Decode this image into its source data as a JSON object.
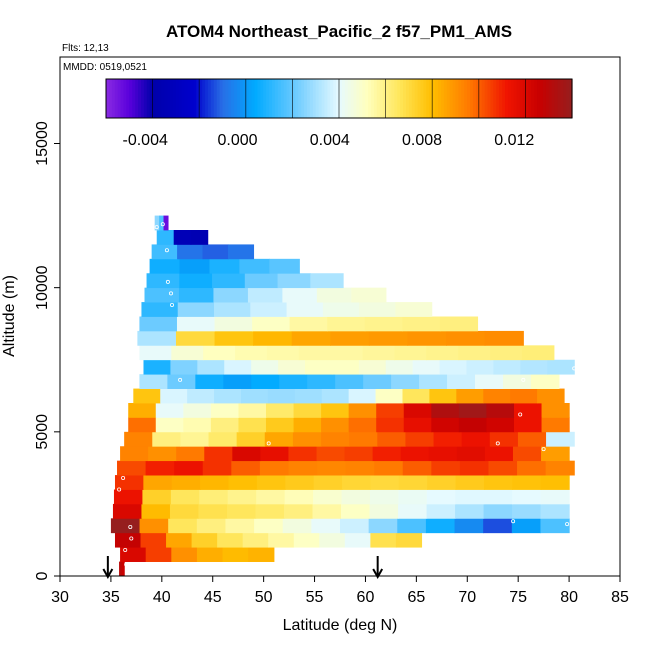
{
  "chart_data": {
    "type": "heatmap",
    "title": "ATOM4 Northeast_Pacific_2 f57_PM1_AMS",
    "flights_label": "Flts: 12,13",
    "date_label": "MMDD: 0519,0521",
    "xlabel": "Latitude (deg N)",
    "ylabel": "Altitude (m)",
    "xlim": [
      30,
      85
    ],
    "ylim": [
      0,
      18000
    ],
    "xticks": [
      "30",
      "35",
      "40",
      "45",
      "50",
      "55",
      "60",
      "65",
      "70",
      "75",
      "80",
      "85"
    ],
    "yticks": [
      "0",
      "5000",
      "10000",
      "15000"
    ],
    "colorbar": {
      "range": [
        -0.0057,
        0.0145
      ],
      "tick_values": [
        -0.004,
        0.0,
        0.004,
        0.008,
        0.012
      ],
      "tick_labels": [
        "-0.004",
        "0.000",
        "0.004",
        "0.008",
        "0.012"
      ]
    },
    "arrows_at_latitude": [
      34.7,
      61.2
    ],
    "profiles": [
      {
        "lat_start": 35.8,
        "lat_end": 36.3,
        "alt": [
          0,
          500
        ],
        "values": [
          0.0135,
          0.013
        ]
      },
      {
        "lat_start": 35.9,
        "lat_end": 51.0,
        "alt": [
          500,
          1000
        ],
        "values": [
          0.0125,
          0.011,
          0.0095,
          0.0088,
          0.0085,
          0.0087
        ]
      },
      {
        "lat_start": 35.4,
        "lat_end": 65.5,
        "alt": [
          1000,
          1500
        ],
        "values": [
          0.0132,
          0.011,
          0.009,
          0.0078,
          0.007,
          0.0065,
          0.006,
          0.0055,
          0.005,
          0.0045,
          0.0072,
          0.0075
        ]
      },
      {
        "lat_start": 35.0,
        "lat_end": 80.0,
        "alt": [
          1500,
          2000
        ],
        "values": [
          0.0145,
          0.0095,
          0.007,
          0.0065,
          0.006,
          0.0055,
          0.005,
          0.0045,
          0.004,
          0.003,
          0.002,
          0.001,
          0.0,
          -0.001,
          0.0005,
          0.002
        ]
      },
      {
        "lat_start": 35.2,
        "lat_end": 80.0,
        "alt": [
          2000,
          2500
        ],
        "values": [
          0.0125,
          0.0085,
          0.0075,
          0.0072,
          0.007,
          0.0068,
          0.0065,
          0.006,
          0.0055,
          0.005,
          0.0045,
          0.004,
          0.0035,
          0.003,
          0.0032,
          0.0035
        ]
      },
      {
        "lat_start": 35.3,
        "lat_end": 80.0,
        "alt": [
          2500,
          3000
        ],
        "values": [
          0.0118,
          0.0078,
          0.007,
          0.0066,
          0.0063,
          0.006,
          0.0057,
          0.0053,
          0.005,
          0.0048,
          0.0046,
          0.0044,
          0.0043,
          0.0043,
          0.0044,
          0.0045
        ]
      },
      {
        "lat_start": 35.4,
        "lat_end": 80.0,
        "alt": [
          3000,
          3500
        ],
        "values": [
          0.0112,
          0.009,
          0.0088,
          0.0086,
          0.0084,
          0.0082,
          0.008,
          0.0078,
          0.0076,
          0.0075,
          0.0076,
          0.0078,
          0.008,
          0.0082,
          0.0083,
          0.0084
        ]
      },
      {
        "lat_start": 35.6,
        "lat_end": 80.5,
        "alt": [
          3500,
          4000
        ],
        "values": [
          0.0108,
          0.0115,
          0.0118,
          0.0112,
          0.0105,
          0.01,
          0.0098,
          0.0097,
          0.0098,
          0.01,
          0.0105,
          0.011,
          0.0112,
          0.0108,
          0.0102,
          0.0098
        ]
      },
      {
        "lat_start": 35.9,
        "lat_end": 80.0,
        "alt": [
          4000,
          4500
        ],
        "values": [
          0.0098,
          0.0095,
          0.01,
          0.0112,
          0.0125,
          0.012,
          0.0112,
          0.0108,
          0.011,
          0.0115,
          0.0118,
          0.012,
          0.0122,
          0.0118,
          0.0108,
          0.0092
        ]
      },
      {
        "lat_start": 36.3,
        "lat_end": 80.5,
        "alt": [
          4500,
          5000
        ],
        "values": [
          0.0098,
          0.0065,
          0.0062,
          0.0068,
          0.0078,
          0.009,
          0.0095,
          0.0098,
          0.01,
          0.0105,
          0.011,
          0.0115,
          0.0118,
          0.0112,
          0.0105,
          0.004
        ]
      },
      {
        "lat_start": 36.7,
        "lat_end": 80.0,
        "alt": [
          5000,
          5500
        ],
        "values": [
          0.0102,
          0.0055,
          0.0058,
          0.0065,
          0.0072,
          0.008,
          0.0088,
          0.0095,
          0.0102,
          0.0112,
          0.012,
          0.0128,
          0.0132,
          0.0128,
          0.0118,
          0.01
        ]
      },
      {
        "lat_start": 36.7,
        "lat_end": 80.0,
        "alt": [
          5500,
          6000
        ],
        "values": [
          0.0088,
          0.0045,
          0.005,
          0.0055,
          0.006,
          0.0068,
          0.0075,
          0.0082,
          0.0095,
          0.011,
          0.0125,
          0.0138,
          0.0142,
          0.0136,
          0.0118,
          0.0095
        ]
      },
      {
        "lat_start": 37.2,
        "lat_end": 79.5,
        "alt": [
          6000,
          6500
        ],
        "values": [
          0.0082,
          0.0042,
          0.0038,
          0.0035,
          0.0033,
          0.0032,
          0.0033,
          0.0035,
          0.0042,
          0.0055,
          0.007,
          0.0082,
          0.0092,
          0.0098,
          0.01,
          0.0095
        ]
      },
      {
        "lat_start": 37.8,
        "lat_end": 79.0,
        "alt": [
          6500,
          7000
        ],
        "values": [
          0.0035,
          0.0025,
          0.001,
          0.0005,
          0.0008,
          0.0012,
          0.0015,
          0.002,
          0.0025,
          0.003,
          0.0035,
          0.004,
          0.0045,
          0.005,
          0.0055
        ]
      },
      {
        "lat_start": 38.2,
        "lat_end": 80.5,
        "alt": [
          7000,
          7500
        ],
        "values": [
          0.0012,
          0.0028,
          0.0035,
          0.0042,
          0.0048,
          0.0052,
          0.0055,
          0.0055,
          0.0052,
          0.0048,
          0.0045,
          0.0042,
          0.004,
          0.0038,
          0.0036,
          0.0035
        ]
      },
      {
        "lat_start": 37.8,
        "lat_end": 78.5,
        "alt": [
          7500,
          8000
        ],
        "values": [
          0.0045,
          0.0052,
          0.0056,
          0.0058,
          0.0059,
          0.006,
          0.006,
          0.0061,
          0.0062,
          0.0063,
          0.0064,
          0.0065,
          0.0066
        ]
      },
      {
        "lat_start": 37.6,
        "lat_end": 75.5,
        "alt": [
          8000,
          8500
        ],
        "values": [
          0.0035,
          0.0075,
          0.0082,
          0.0086,
          0.009,
          0.0092,
          0.0093,
          0.0094,
          0.0095,
          0.0096
        ]
      },
      {
        "lat_start": 37.8,
        "lat_end": 71.0,
        "alt": [
          8500,
          9000
        ],
        "values": [
          0.0025,
          0.0045,
          0.005,
          0.0055,
          0.006,
          0.0062,
          0.0063,
          0.0064,
          0.0065
        ]
      },
      {
        "lat_start": 38.0,
        "lat_end": 66.5,
        "alt": [
          9000,
          9500
        ],
        "values": [
          0.0015,
          0.003,
          0.0035,
          0.004,
          0.0045,
          0.0048,
          0.005,
          0.0052
        ]
      },
      {
        "lat_start": 38.3,
        "lat_end": 62.0,
        "alt": [
          9500,
          10000
        ],
        "values": [
          0.002,
          0.0015,
          0.003,
          0.0038,
          0.0045,
          0.005,
          0.0052
        ]
      },
      {
        "lat_start": 38.5,
        "lat_end": 57.8,
        "alt": [
          10000,
          10500
        ],
        "values": [
          0.0015,
          0.001,
          0.0015,
          0.0025,
          0.003,
          0.0035
        ]
      },
      {
        "lat_start": 38.8,
        "lat_end": 53.5,
        "alt": [
          10500,
          11000
        ],
        "values": [
          0.001,
          0.0005,
          0.0012,
          0.0018,
          0.0022
        ]
      },
      {
        "lat_start": 39.0,
        "lat_end": 49.0,
        "alt": [
          11000,
          11500
        ],
        "values": [
          0.0018,
          -0.0005,
          -0.0008,
          -0.0005
        ]
      },
      {
        "lat_start": 39.5,
        "lat_end": 44.5,
        "alt": [
          11500,
          12000
        ],
        "values": [
          0.0015,
          -0.003,
          -0.0032
        ]
      },
      {
        "lat_start": 39.3,
        "lat_end": 40.6,
        "alt": [
          12000,
          12500
        ],
        "values": [
          0.003,
          0.002,
          -0.005
        ]
      }
    ],
    "markers": [
      [
        36.5,
        400
      ],
      [
        36.4,
        900
      ],
      [
        37.0,
        1300
      ],
      [
        36.9,
        1700
      ],
      [
        74.5,
        1900
      ],
      [
        79.8,
        1800
      ],
      [
        35.8,
        3000
      ],
      [
        36.2,
        3400
      ],
      [
        50.5,
        4600
      ],
      [
        73.0,
        4600
      ],
      [
        77.5,
        4400
      ],
      [
        75.2,
        5600
      ],
      [
        41.8,
        6800
      ],
      [
        75.5,
        6800
      ],
      [
        80.5,
        7200
      ],
      [
        75.8,
        8300
      ],
      [
        41.0,
        9400
      ],
      [
        40.9,
        9800
      ],
      [
        40.6,
        10200
      ],
      [
        40.5,
        11300
      ],
      [
        39.5,
        12100
      ],
      [
        40.1,
        12200
      ]
    ]
  }
}
